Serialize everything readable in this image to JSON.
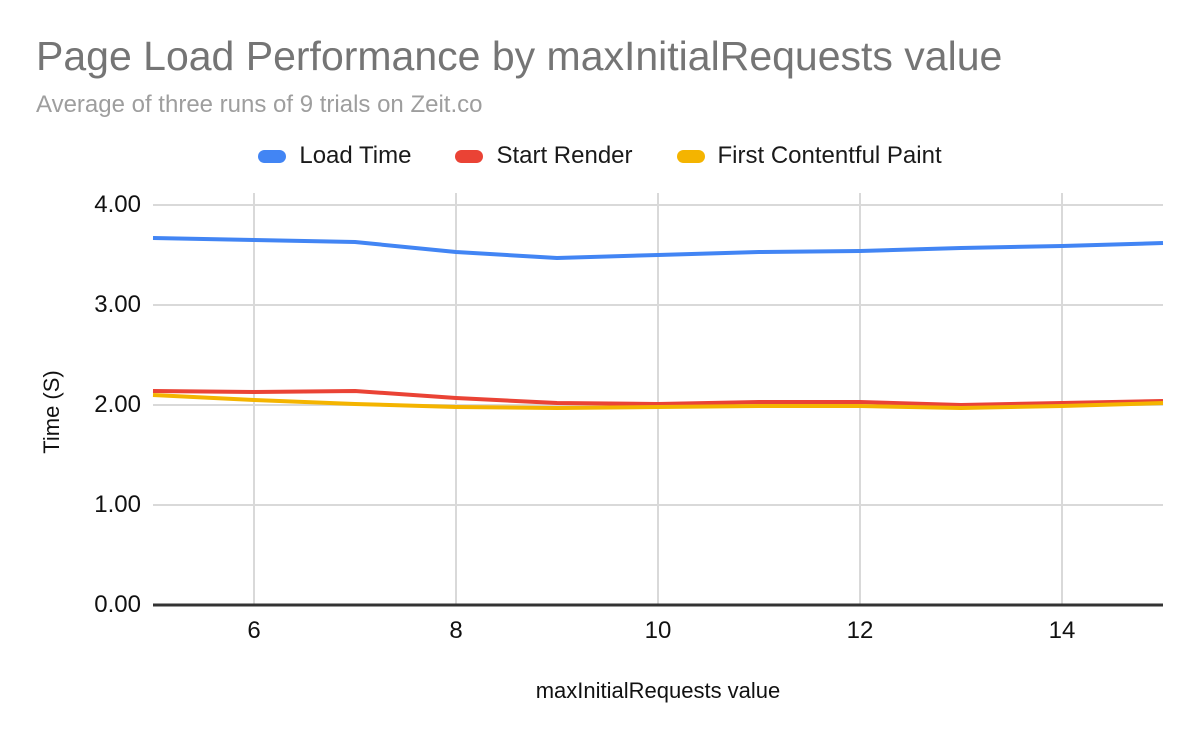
{
  "chart_data": {
    "type": "line",
    "title": "Page Load Performance by maxInitialRequests value",
    "subtitle": "Average of three runs of 9 trials on Zeit.co",
    "xlabel": "maxInitialRequests value",
    "ylabel": "Time (S)",
    "x": [
      5,
      6,
      7,
      8,
      9,
      10,
      11,
      12,
      13,
      14,
      15
    ],
    "series": [
      {
        "name": "Load Time",
        "color": "#4285F4",
        "values": [
          3.67,
          3.65,
          3.63,
          3.53,
          3.47,
          3.5,
          3.53,
          3.54,
          3.57,
          3.59,
          3.62
        ]
      },
      {
        "name": "Start Render",
        "color": "#EA4335",
        "values": [
          2.14,
          2.13,
          2.14,
          2.07,
          2.02,
          2.01,
          2.03,
          2.03,
          2.0,
          2.02,
          2.04
        ]
      },
      {
        "name": "First Contentful Paint",
        "color": "#F4B400",
        "values": [
          2.1,
          2.05,
          2.01,
          1.98,
          1.97,
          1.98,
          1.99,
          1.99,
          1.97,
          1.99,
          2.02
        ]
      }
    ],
    "xlim": [
      5,
      15
    ],
    "ylim": [
      0,
      4
    ],
    "xticks": {
      "values": [
        6,
        8,
        10,
        12,
        14
      ],
      "labels": [
        "6",
        "8",
        "10",
        "12",
        "14"
      ]
    },
    "yticks": {
      "values": [
        0,
        1,
        2,
        3,
        4
      ],
      "labels": [
        "0.00",
        "1.00",
        "2.00",
        "3.00",
        "4.00"
      ]
    },
    "grid": true,
    "legend_position": "top",
    "colors": {
      "title": "#757575",
      "subtitle": "#9e9e9e",
      "text": "#1a1a1a",
      "gridline": "#d9d9d9",
      "baseline": "#333333",
      "background": "#ffffff"
    }
  }
}
